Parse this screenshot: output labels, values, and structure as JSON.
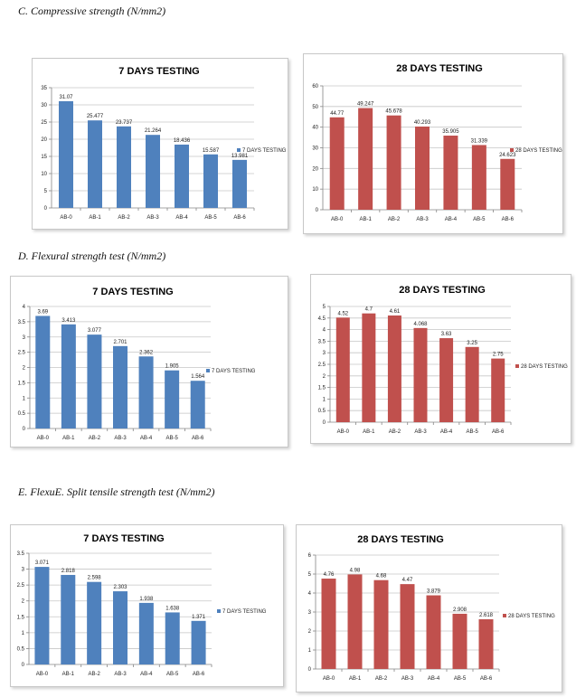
{
  "headings": {
    "c": "C.   Compressive strength (N/mm2)",
    "d": "D.   Flexural strength test (N/mm2)",
    "e": "E.   FlexuE. Split tensile strength test (N/mm2)"
  },
  "colors": {
    "blue": "#4f81bd",
    "red": "#c0504d",
    "grid": "#c6c6c6",
    "axis": "#868686"
  },
  "chart_data": [
    {
      "id": "c7",
      "type": "bar",
      "title": "7 DAYS TESTING",
      "categories": [
        "AB-0",
        "AB-1",
        "AB-2",
        "AB-3",
        "AB-4",
        "AB-5",
        "AB-6"
      ],
      "series": [
        {
          "name": "7 DAYS TESTING",
          "color": "#4f81bd",
          "values": [
            31.07,
            25.477,
            23.737,
            21.264,
            18.436,
            15.587,
            13.981
          ],
          "labels": [
            "31.07",
            "25.477",
            "23.737",
            "21.264",
            "18.436",
            "15.587",
            "13.981"
          ]
        }
      ],
      "ylim": [
        0,
        35
      ],
      "yticks": [
        "0",
        "5",
        "10",
        "15",
        "20",
        "25",
        "30",
        "35"
      ],
      "grid": true,
      "legend": "right"
    },
    {
      "id": "c28",
      "type": "bar",
      "title": "28 DAYS  TESTING",
      "categories": [
        "AB-0",
        "AB-1",
        "AB-2",
        "AB-3",
        "AB-4",
        "AB-5",
        "AB-6"
      ],
      "series": [
        {
          "name": "28 DAYS  TESTING",
          "color": "#c0504d",
          "values": [
            44.77,
            49.247,
            45.678,
            40.293,
            35.905,
            31.339,
            24.623
          ],
          "labels": [
            "44.77",
            "49.247",
            "45.678",
            "40.293",
            "35.905",
            "31.339",
            "24.623"
          ]
        }
      ],
      "ylim": [
        0,
        60
      ],
      "yticks": [
        "0",
        "10",
        "20",
        "30",
        "40",
        "50",
        "60"
      ],
      "grid": true,
      "legend": "right"
    },
    {
      "id": "d7",
      "type": "bar",
      "title": "7 DAYS  TESTING",
      "categories": [
        "AB-0",
        "AB-1",
        "AB-2",
        "AB-3",
        "AB-4",
        "AB-5",
        "AB-6"
      ],
      "series": [
        {
          "name": "7 DAYS  TESTING",
          "color": "#4f81bd",
          "values": [
            3.69,
            3.413,
            3.077,
            2.701,
            2.362,
            1.905,
            1.564
          ],
          "labels": [
            "3.69",
            "3.413",
            "3.077",
            "2.701",
            "2.362",
            "1.905",
            "1.564"
          ]
        }
      ],
      "ylim": [
        0,
        4
      ],
      "yticks": [
        "0",
        "0.5",
        "1",
        "1.5",
        "2",
        "2.5",
        "3",
        "3.5",
        "4"
      ],
      "grid": true,
      "legend": "right"
    },
    {
      "id": "d28",
      "type": "bar",
      "title": "28 DAYS  TESTING",
      "categories": [
        "AB-0",
        "AB-1",
        "AB-2",
        "AB-3",
        "AB-4",
        "AB-5",
        "AB-6"
      ],
      "series": [
        {
          "name": "28 DAYS  TESTING",
          "color": "#c0504d",
          "values": [
            4.52,
            4.7,
            4.61,
            4.068,
            3.63,
            3.25,
            2.75
          ],
          "labels": [
            "4.52",
            "4.7",
            "4.61",
            "4.068",
            "3.63",
            "3.25",
            "2.75"
          ]
        }
      ],
      "ylim": [
        0,
        5
      ],
      "yticks": [
        "0",
        "0.5",
        "1",
        "1.5",
        "2",
        "2.5",
        "3",
        "3.5",
        "4",
        "4.5",
        "5"
      ],
      "grid": true,
      "legend": "right"
    },
    {
      "id": "e7",
      "type": "bar",
      "title": "7 DAYS  TESTING",
      "categories": [
        "AB-0",
        "AB-1",
        "AB-2",
        "AB-3",
        "AB-4",
        "AB-5",
        "AB-6"
      ],
      "series": [
        {
          "name": "7 DAYS  TESTING",
          "color": "#4f81bd",
          "values": [
            3.071,
            2.818,
            2.598,
            2.303,
            1.938,
            1.638,
            1.371
          ],
          "labels": [
            "3.071",
            "2.818",
            "2.598",
            "2.303",
            "1.938",
            "1.638",
            "1.371"
          ]
        }
      ],
      "ylim": [
        0,
        3.5
      ],
      "yticks": [
        "0",
        "0.5",
        "1",
        "1.5",
        "2",
        "2.5",
        "3",
        "3.5"
      ],
      "grid": true,
      "legend": "right"
    },
    {
      "id": "e28",
      "type": "bar",
      "title": "28 DAYS  TESTING",
      "categories": [
        "AB-0",
        "AB-1",
        "AB-2",
        "AB-3",
        "AB-4",
        "AB-5",
        "AB-6"
      ],
      "series": [
        {
          "name": "28 DAYS  TESTING",
          "color": "#c0504d",
          "values": [
            4.76,
            4.98,
            4.68,
            4.47,
            3.879,
            2.908,
            2.618
          ],
          "labels": [
            "4.76",
            "4.98",
            "4.68",
            "4.47",
            "3.879",
            "2.908",
            "2.618"
          ]
        }
      ],
      "ylim": [
        0,
        6
      ],
      "yticks": [
        "0",
        "1",
        "2",
        "3",
        "4",
        "5",
        "6"
      ],
      "grid": true,
      "legend": "right"
    }
  ]
}
